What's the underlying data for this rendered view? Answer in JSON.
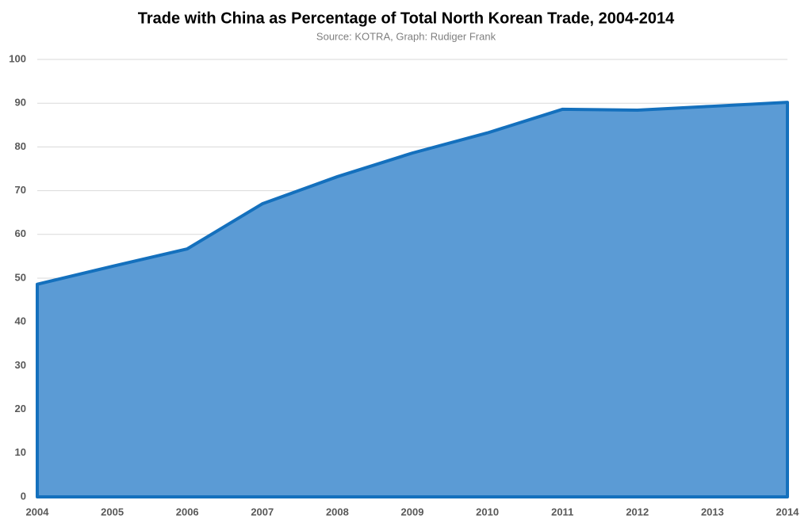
{
  "chart_data": {
    "type": "area",
    "title": "Trade with China as Percentage of Total North Korean Trade, 2004-2014",
    "subtitle": "Source: KOTRA, Graph: Rudiger Frank",
    "categories": [
      "2004",
      "2005",
      "2006",
      "2007",
      "2008",
      "2009",
      "2010",
      "2011",
      "2012",
      "2013",
      "2014"
    ],
    "values": [
      48.6,
      52.7,
      56.7,
      67.0,
      73.2,
      78.6,
      83.2,
      88.6,
      88.4,
      89.3,
      90.2
    ],
    "color": "#5b9bd5",
    "line_color": "#1470bd",
    "ylim": [
      0,
      100
    ],
    "yticks": [
      0,
      10,
      20,
      30,
      40,
      50,
      60,
      70,
      80,
      90,
      100
    ],
    "grid": true
  }
}
